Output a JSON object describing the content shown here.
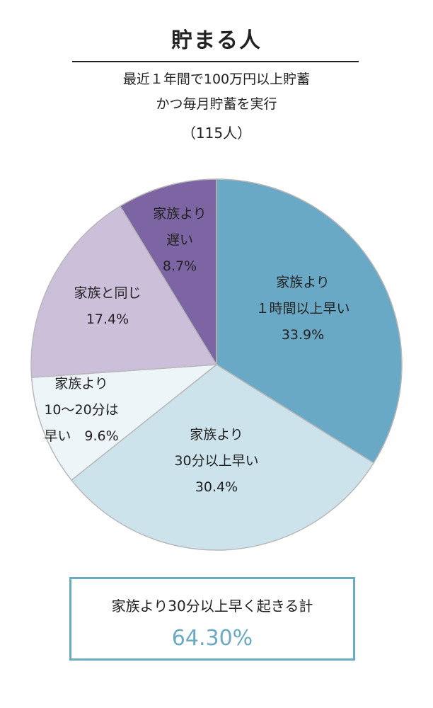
{
  "title": "貯まる人",
  "subtitle_line1": "最近１年間で100万円以上貯蓄",
  "subtitle_line2": "かつ毎月貯蓄を実行",
  "sample": "（115人）",
  "chart_data": {
    "type": "pie",
    "title": "貯まる人",
    "slices": [
      {
        "label_lines": [
          "家族より",
          "１時間以上早い",
          "33.9%"
        ],
        "value": 33.9,
        "color": "#69a9c5"
      },
      {
        "label_lines": [
          "家族より",
          "30分以上早い",
          "30.4%"
        ],
        "value": 30.4,
        "color": "#cde3ec"
      },
      {
        "label_lines": [
          "家族より",
          "10〜20分は",
          "早い　9.6%"
        ],
        "value": 9.6,
        "color": "#eef5f8"
      },
      {
        "label_lines": [
          "家族と同じ",
          "17.4%"
        ],
        "value": 17.4,
        "color": "#cbbfda"
      },
      {
        "label_lines": [
          "家族より",
          "遅い",
          "8.7%"
        ],
        "value": 8.7,
        "color": "#7d65a3"
      }
    ],
    "start": "12 o'clock",
    "direction": "clockwise"
  },
  "summary": {
    "text": "家族より30分以上早く起きる計",
    "value": "64.30%",
    "accent": "#6aaac3"
  }
}
